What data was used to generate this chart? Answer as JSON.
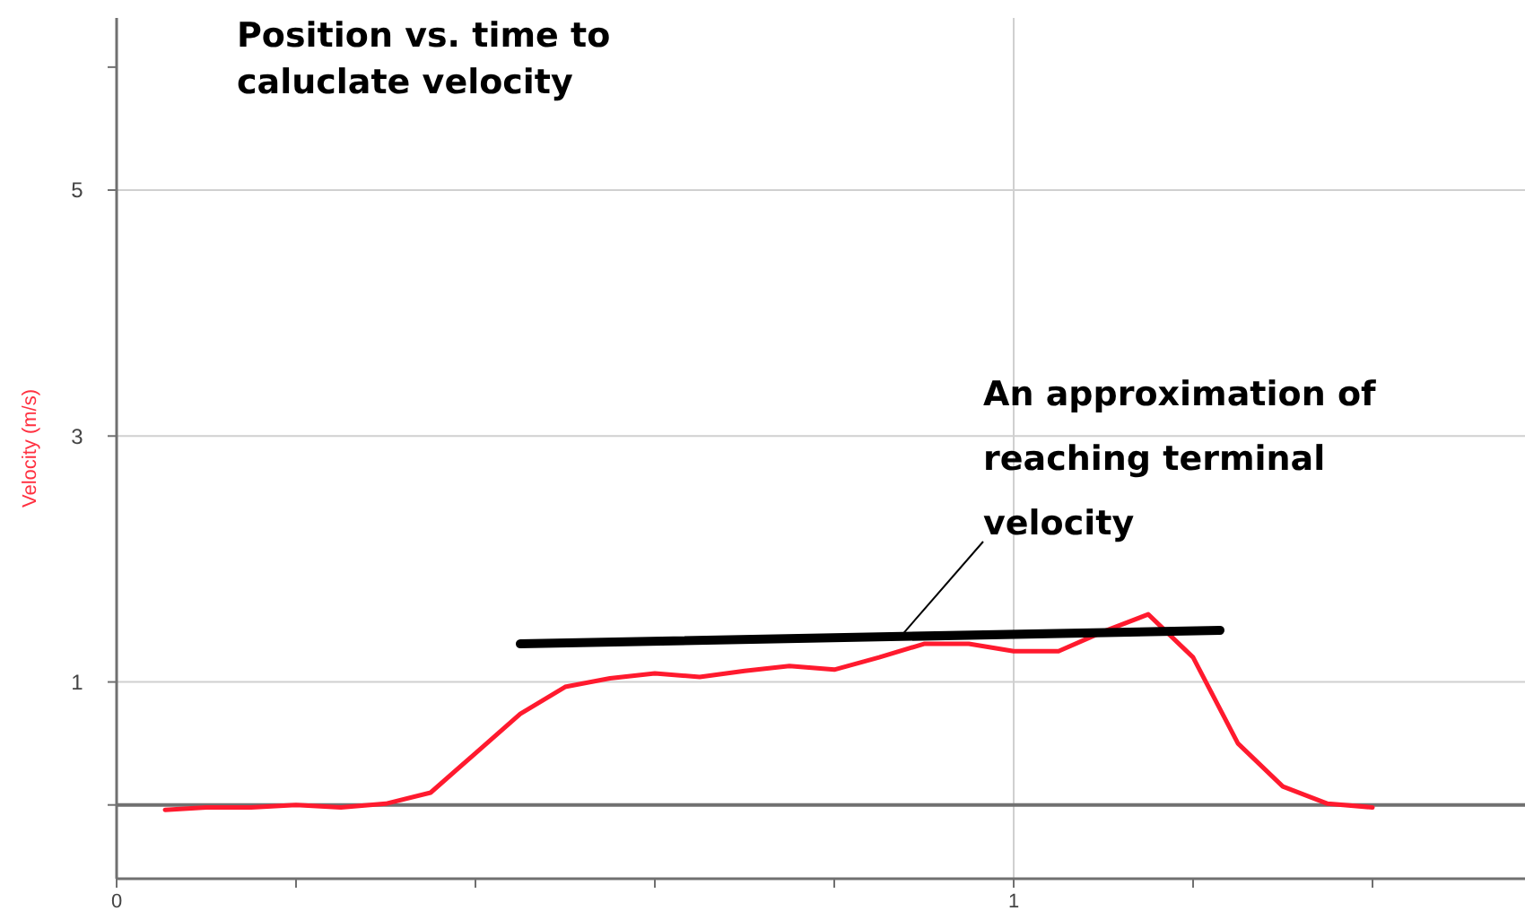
{
  "chart_data": {
    "type": "line",
    "title": "Position vs. time to caluclate velocity",
    "ylabel": "Velocity (m/s)",
    "xlim": [
      0,
      1.57
    ],
    "ylim": [
      -0.6,
      6.4
    ],
    "xticks": [
      0,
      {
        "value": 0.2,
        "label": null
      },
      {
        "value": 0.4,
        "label": null
      },
      {
        "value": 0.6,
        "label": null
      },
      {
        "value": 0.8,
        "label": null
      },
      1,
      {
        "value": 1.2,
        "label": null
      },
      {
        "value": 1.4,
        "label": null
      }
    ],
    "yticks": [
      {
        "value": 0,
        "label": null
      },
      1,
      3,
      5,
      {
        "value": 6,
        "label": null
      }
    ],
    "grid": true,
    "marker": "none",
    "line_style": "solid",
    "series": [
      {
        "color": "#ff1a2e",
        "x": [
          0.054,
          0.1,
          0.15,
          0.2,
          0.25,
          0.3,
          0.35,
          0.4,
          0.45,
          0.5,
          0.55,
          0.6,
          0.65,
          0.7,
          0.75,
          0.8,
          0.85,
          0.9,
          0.95,
          1.0,
          1.05,
          1.1,
          1.15,
          1.2,
          1.25,
          1.3,
          1.35,
          1.4
        ],
        "values": [
          -0.04,
          -0.02,
          -0.02,
          0,
          -0.02,
          0.01,
          0.1,
          0.42,
          0.74,
          0.96,
          1.03,
          1.07,
          1.04,
          1.09,
          1.13,
          1.1,
          1.2,
          1.31,
          1.31,
          1.25,
          1.25,
          1.41,
          1.55,
          1.2,
          0.5,
          0.15,
          0.01,
          -0.02
        ]
      },
      {
        "color": "#000000",
        "x": [
          0.45,
          1.23
        ],
        "values": [
          1.31,
          1.42
        ]
      }
    ],
    "annotations": [
      {
        "text": "An approximation of reaching terminal velocity",
        "x": 0.87,
        "y": 1.37
      }
    ]
  }
}
